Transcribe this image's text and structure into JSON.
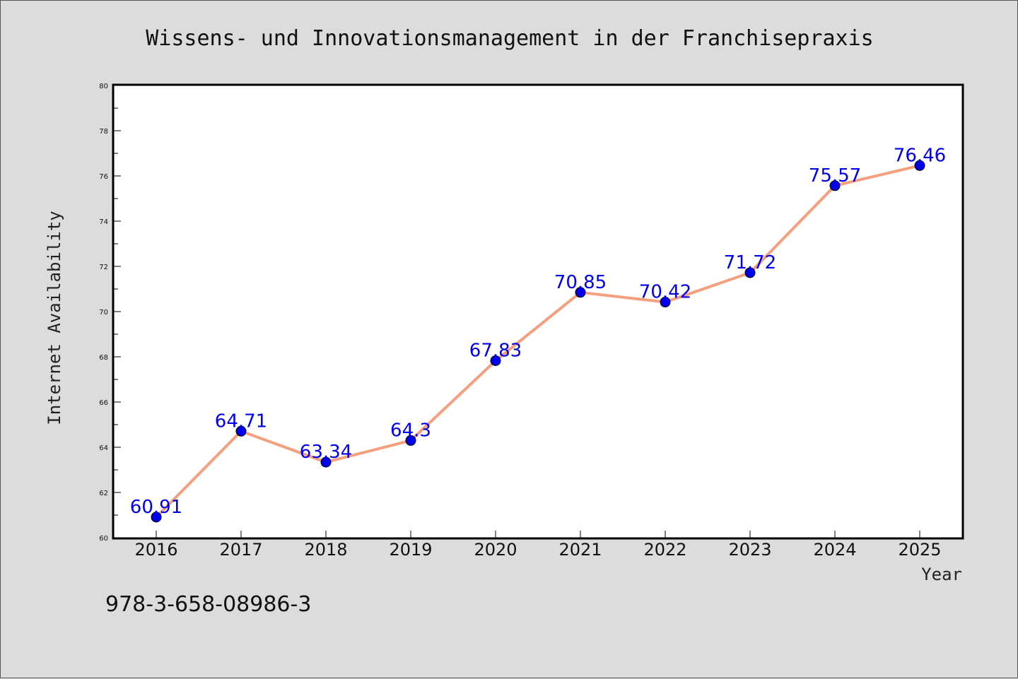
{
  "chart_data": {
    "type": "line",
    "title": "Wissens- und Innovationsmanagement in der Franchisepraxis",
    "xlabel": "Year",
    "ylabel": "Internet Availability",
    "categories": [
      "2016",
      "2017",
      "2018",
      "2019",
      "2020",
      "2021",
      "2022",
      "2023",
      "2024",
      "2025"
    ],
    "series": [
      {
        "values": [
          60.91,
          64.71,
          63.34,
          64.3,
          67.83,
          70.85,
          70.42,
          71.72,
          75.57,
          76.46
        ],
        "labels": [
          "60.91",
          "64.71",
          "63.34",
          "64.3",
          "67.83",
          "70.85",
          "70.42",
          "71.72",
          "75.57",
          "76.46"
        ],
        "line_color": "#f4a07f",
        "marker_color": "#0000ee"
      }
    ],
    "ylim": [
      60,
      80
    ],
    "yticks": [
      60,
      62,
      64,
      66,
      68,
      70,
      72,
      74,
      76,
      78,
      80
    ],
    "ytick_labels": [
      "60",
      "62",
      "64",
      "66",
      "68",
      "70",
      "72",
      "74",
      "76",
      "78",
      "80"
    ],
    "grid": false,
    "legend": "none"
  },
  "footer": {
    "isbn": "978-3-658-08986-3"
  },
  "colors": {
    "background": "#dcdcdc",
    "plot_background": "#ffffff",
    "data_label": "#0000ee"
  }
}
